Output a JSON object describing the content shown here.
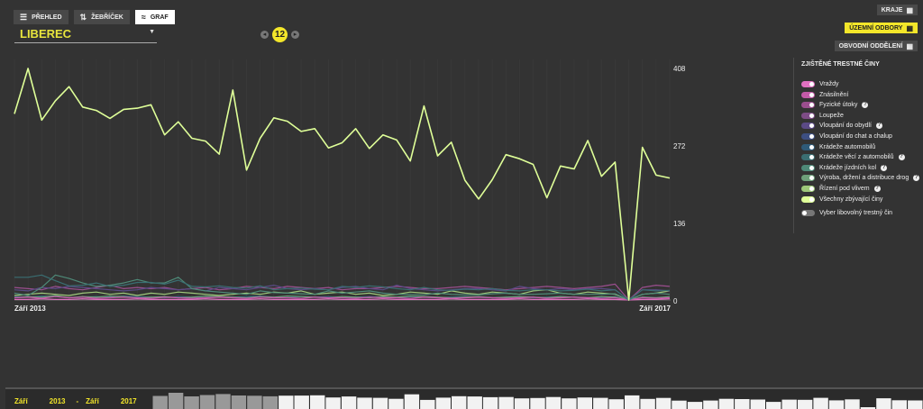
{
  "tabs": {
    "overview": "PŘEHLED",
    "ranking": "ŽEBŘÍČEK",
    "graph": "GRAF"
  },
  "region": {
    "name": "LIBEREC"
  },
  "month_badge": "12",
  "right_buttons": {
    "kraje": "KRAJE",
    "uzemni": "ÚZEMNÍ ODBORY",
    "obvodni": "OBVODNÍ ODDĚLENÍ"
  },
  "colors": {
    "accent": "#f3e62a",
    "background": "#333333"
  },
  "legend": {
    "title": "ZJIŠTĚNÉ TRESTNÉ ČINY",
    "items": [
      {
        "label": "Vraždy",
        "color": "#e070c0",
        "help": false
      },
      {
        "label": "Znásilnění",
        "color": "#c45aa8",
        "help": false
      },
      {
        "label": "Fyzické útoky",
        "color": "#9b4e8e",
        "help": true
      },
      {
        "label": "Loupeže",
        "color": "#7d4c86",
        "help": false
      },
      {
        "label": "Vloupání do obydlí",
        "color": "#5b4a86",
        "help": true
      },
      {
        "label": "Vloupání do chat a chalup",
        "color": "#3d4f82",
        "help": false
      },
      {
        "label": "Krádeže automobilů",
        "color": "#2e5a78",
        "help": false
      },
      {
        "label": "Krádeže věcí z automobilů",
        "color": "#3a6e72",
        "help": true
      },
      {
        "label": "Krádeže jízdních kol",
        "color": "#4e8a78",
        "help": true
      },
      {
        "label": "Výroba, držení a distribuce drog",
        "color": "#6ea07a",
        "help": true
      },
      {
        "label": "Řízení pod vlivem",
        "color": "#9ec87a",
        "help": true
      },
      {
        "label": "Všechny zbývající činy",
        "color": "#dfff98",
        "help": false
      }
    ],
    "custom_label": "Vyber libovolný trestný čin"
  },
  "chart_data": {
    "type": "line",
    "x_start_label": "Září 2013",
    "x_end_label": "Září 2017",
    "y_ticks": [
      408,
      272,
      136,
      0
    ],
    "ylim": [
      0,
      408
    ],
    "grid": true,
    "series": [
      {
        "name": "Všechny zbývající činy",
        "color": "#dfff98",
        "values": [
          328,
          408,
          317,
          351,
          376,
          340,
          334,
          320,
          336,
          338,
          344,
          291,
          314,
          285,
          280,
          257,
          370,
          229,
          285,
          321,
          315,
          297,
          302,
          268,
          277,
          302,
          267,
          291,
          282,
          245,
          342,
          254,
          278,
          211,
          178,
          212,
          256,
          249,
          239,
          180,
          236,
          231,
          281,
          218,
          243,
          0,
          269,
          220,
          215
        ]
      },
      {
        "name": "Krádeže věcí z automobilů",
        "color": "#3a6e72",
        "values": [
          40,
          40,
          44,
          34,
          25,
          26,
          30,
          24,
          26,
          31,
          31,
          28,
          35,
          24,
          23,
          25,
          22,
          21,
          25,
          18,
          20,
          21,
          19,
          18,
          24,
          22,
          25,
          23,
          20,
          18,
          22,
          18,
          17,
          19,
          18,
          20,
          17,
          16,
          18,
          18,
          16,
          17,
          19,
          16,
          18,
          0,
          18,
          16,
          17
        ]
      },
      {
        "name": "Krádeže jízdních kol",
        "color": "#4e8a78",
        "values": [
          12,
          8,
          22,
          44,
          38,
          30,
          24,
          26,
          30,
          36,
          30,
          30,
          40,
          20,
          16,
          14,
          12,
          10,
          16,
          13,
          12,
          11,
          10,
          16,
          12,
          14,
          16,
          12,
          10,
          10,
          9,
          12,
          10,
          9,
          9,
          11,
          12,
          10,
          10,
          11,
          12,
          10,
          10,
          10,
          11,
          0,
          10,
          12,
          10
        ]
      },
      {
        "name": "Vloupání do obydlí",
        "color": "#5b4a86",
        "values": [
          18,
          16,
          22,
          20,
          24,
          22,
          20,
          18,
          16,
          18,
          22,
          20,
          18,
          20,
          16,
          22,
          20,
          18,
          22,
          26,
          20,
          18,
          20,
          18,
          22,
          24,
          20,
          18,
          26,
          20,
          18,
          16,
          18,
          20,
          20,
          18,
          16,
          24,
          20,
          18,
          20,
          18,
          20,
          20,
          18,
          0,
          18,
          18,
          16
        ]
      },
      {
        "name": "Fyzické útoky",
        "color": "#9b4e8e",
        "values": [
          22,
          20,
          18,
          24,
          20,
          18,
          22,
          26,
          20,
          22,
          20,
          22,
          18,
          20,
          22,
          18,
          20,
          24,
          22,
          20,
          24,
          22,
          20,
          22,
          18,
          20,
          20,
          22,
          24,
          22,
          20,
          20,
          22,
          24,
          22,
          20,
          18,
          20,
          22,
          24,
          22,
          20,
          22,
          24,
          28,
          0,
          22,
          26,
          24
        ]
      },
      {
        "name": "Znásilnění",
        "color": "#c45aa8",
        "values": [
          4,
          5,
          3,
          6,
          4,
          5,
          3,
          4,
          5,
          4,
          3,
          5,
          4,
          3,
          4,
          5,
          4,
          3,
          5,
          4,
          4,
          3,
          5,
          4,
          4,
          3,
          5,
          4,
          4,
          3,
          5,
          4,
          3,
          4,
          5,
          4,
          3,
          4,
          5,
          3,
          4,
          5,
          4,
          3,
          4,
          0,
          4,
          3,
          4
        ]
      },
      {
        "name": "Vraždy",
        "color": "#e070c0",
        "values": [
          1,
          1,
          2,
          1,
          1,
          2,
          1,
          1,
          1,
          2,
          1,
          1,
          1,
          1,
          2,
          1,
          1,
          1,
          2,
          1,
          1,
          1,
          1,
          2,
          1,
          1,
          1,
          2,
          1,
          1,
          1,
          1,
          2,
          1,
          1,
          1,
          1,
          2,
          1,
          1,
          1,
          1,
          2,
          1,
          1,
          0,
          1,
          1,
          2
        ]
      },
      {
        "name": "Řízení pod vlivem",
        "color": "#9ec87a",
        "values": [
          8,
          10,
          12,
          10,
          8,
          12,
          14,
          10,
          12,
          8,
          12,
          10,
          14,
          12,
          10,
          8,
          10,
          12,
          10,
          14,
          12,
          16,
          10,
          12,
          14,
          10,
          12,
          8,
          10,
          14,
          12,
          10,
          16,
          12,
          10,
          14,
          12,
          10,
          16,
          18,
          12,
          10,
          14,
          12,
          10,
          0,
          10,
          12,
          16
        ]
      },
      {
        "name": "Výroba, držení a distribuce drog",
        "color": "#6ea07a",
        "values": [
          4,
          6,
          5,
          8,
          4,
          6,
          5,
          7,
          6,
          4,
          5,
          6,
          4,
          5,
          7,
          6,
          5,
          4,
          6,
          5,
          7,
          6,
          5,
          4,
          6,
          5,
          4,
          6,
          5,
          7,
          6,
          5,
          4,
          5,
          6,
          4,
          5,
          6,
          5,
          4,
          6,
          5,
          4,
          6,
          5,
          0,
          5,
          4,
          6
        ]
      },
      {
        "name": "Krádeže automobilů",
        "color": "#2e5a78",
        "values": [
          6,
          5,
          7,
          6,
          4,
          5,
          6,
          5,
          7,
          6,
          5,
          4,
          6,
          5,
          4,
          6,
          5,
          6,
          7,
          5,
          4,
          6,
          5,
          6,
          4,
          5,
          6,
          5,
          4,
          6,
          5,
          4,
          5,
          6,
          5,
          4,
          5,
          6,
          4,
          5,
          6,
          5,
          4,
          5,
          6,
          0,
          5,
          4,
          5
        ]
      }
    ]
  },
  "bottom_bar": {
    "from_label": "Září",
    "from_year": "2013",
    "dash": "-",
    "to_label": "Září",
    "to_year": "2017"
  }
}
